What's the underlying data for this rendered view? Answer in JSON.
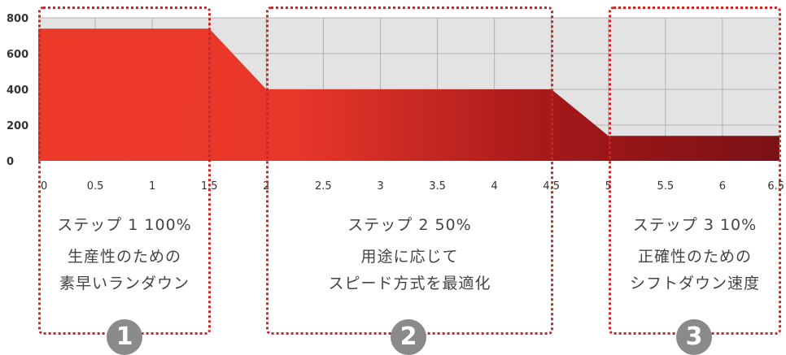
{
  "chart_data": {
    "type": "area",
    "title": "",
    "xlabel": "",
    "ylabel": "",
    "xlim": [
      0,
      6.5
    ],
    "ylim": [
      0,
      800
    ],
    "x_ticks": [
      "0",
      "0.5",
      "1",
      "1.5",
      "2",
      "2.5",
      "3",
      "3.5",
      "4",
      "4.5",
      "5",
      "5.5",
      "6",
      "6.5"
    ],
    "y_ticks": [
      "800",
      "600",
      "400",
      "200",
      "0"
    ],
    "grid": true,
    "series": [
      {
        "x": [
          0,
          1.5,
          2,
          4.5,
          5,
          6.5
        ],
        "y": [
          740,
          740,
          400,
          400,
          140,
          140
        ]
      }
    ],
    "colors": {
      "fill_start": "#ee3a2b",
      "fill_end": "#7a1114",
      "plot_bg": "#e3e3e3",
      "grid": "#b0b0b0",
      "dotted": "#c62828"
    }
  },
  "steps": [
    {
      "number": "1",
      "title": "ステップ 1 100%",
      "desc_line1": "生産性のための",
      "desc_line2": "素早いランダウン"
    },
    {
      "number": "2",
      "title": "ステップ 2 50%",
      "desc_line1": "用途に応じて",
      "desc_line2": "スピード方式を最適化"
    },
    {
      "number": "3",
      "title": "ステップ 3 10%",
      "desc_line1": "正確性のための",
      "desc_line2": "シフトダウン速度"
    }
  ]
}
